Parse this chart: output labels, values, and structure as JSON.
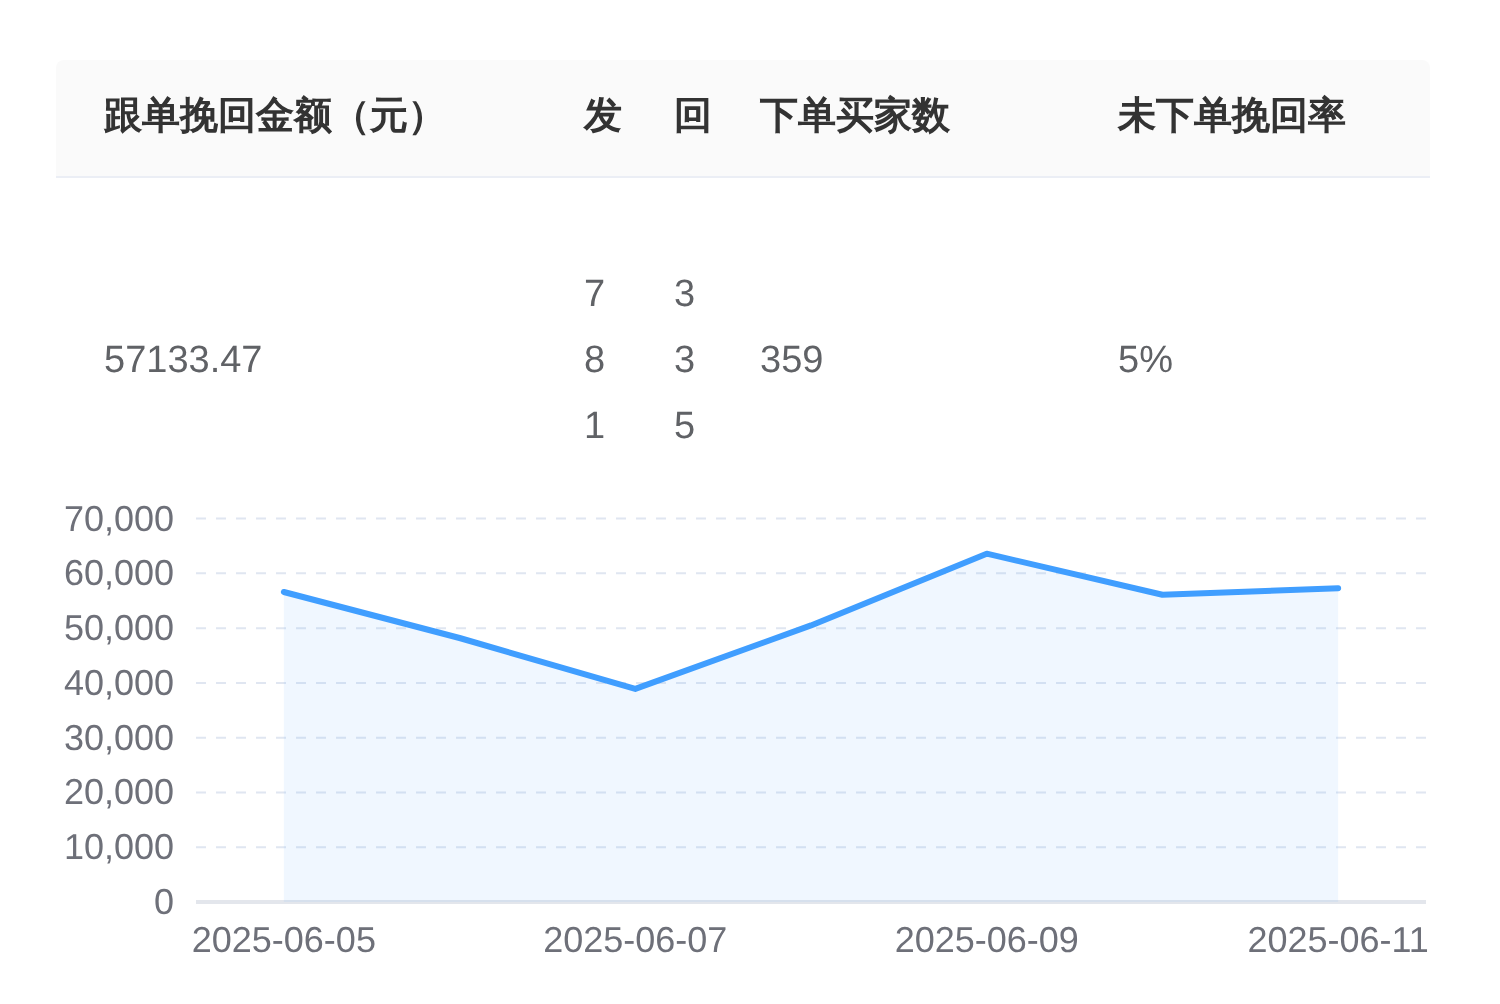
{
  "chart_data": [
    {
      "type": "other",
      "categories": [
        "跟单挽回金额（元）",
        "发",
        "回",
        "下单买家数",
        "未下单挽回率"
      ],
      "annotations": [
        "57133.47",
        "781",
        "335",
        "359",
        "5%"
      ]
    },
    {
      "type": "area",
      "categories": [
        "2025-06-05",
        null,
        "2025-06-07",
        null,
        "2025-06-09",
        null,
        "2025-06-11"
      ],
      "series": [
        {
          "color": "#409eff",
          "values": [
            56600,
            48200,
            38900,
            50500,
            63600,
            56100,
            57300
          ]
        }
      ],
      "ylim": [
        0,
        70000
      ],
      "yticks": [
        0,
        {
          "value": 10000,
          "label": "10,000"
        },
        {
          "value": 20000,
          "label": "20,000"
        },
        {
          "value": 30000,
          "label": "30,000"
        },
        {
          "value": 40000,
          "label": "40,000"
        },
        {
          "value": 50000,
          "label": "50,000"
        },
        {
          "value": 60000,
          "label": "60,000"
        },
        {
          "value": 70000,
          "label": "70,000"
        }
      ],
      "grid": "y",
      "marker": "none"
    }
  ]
}
